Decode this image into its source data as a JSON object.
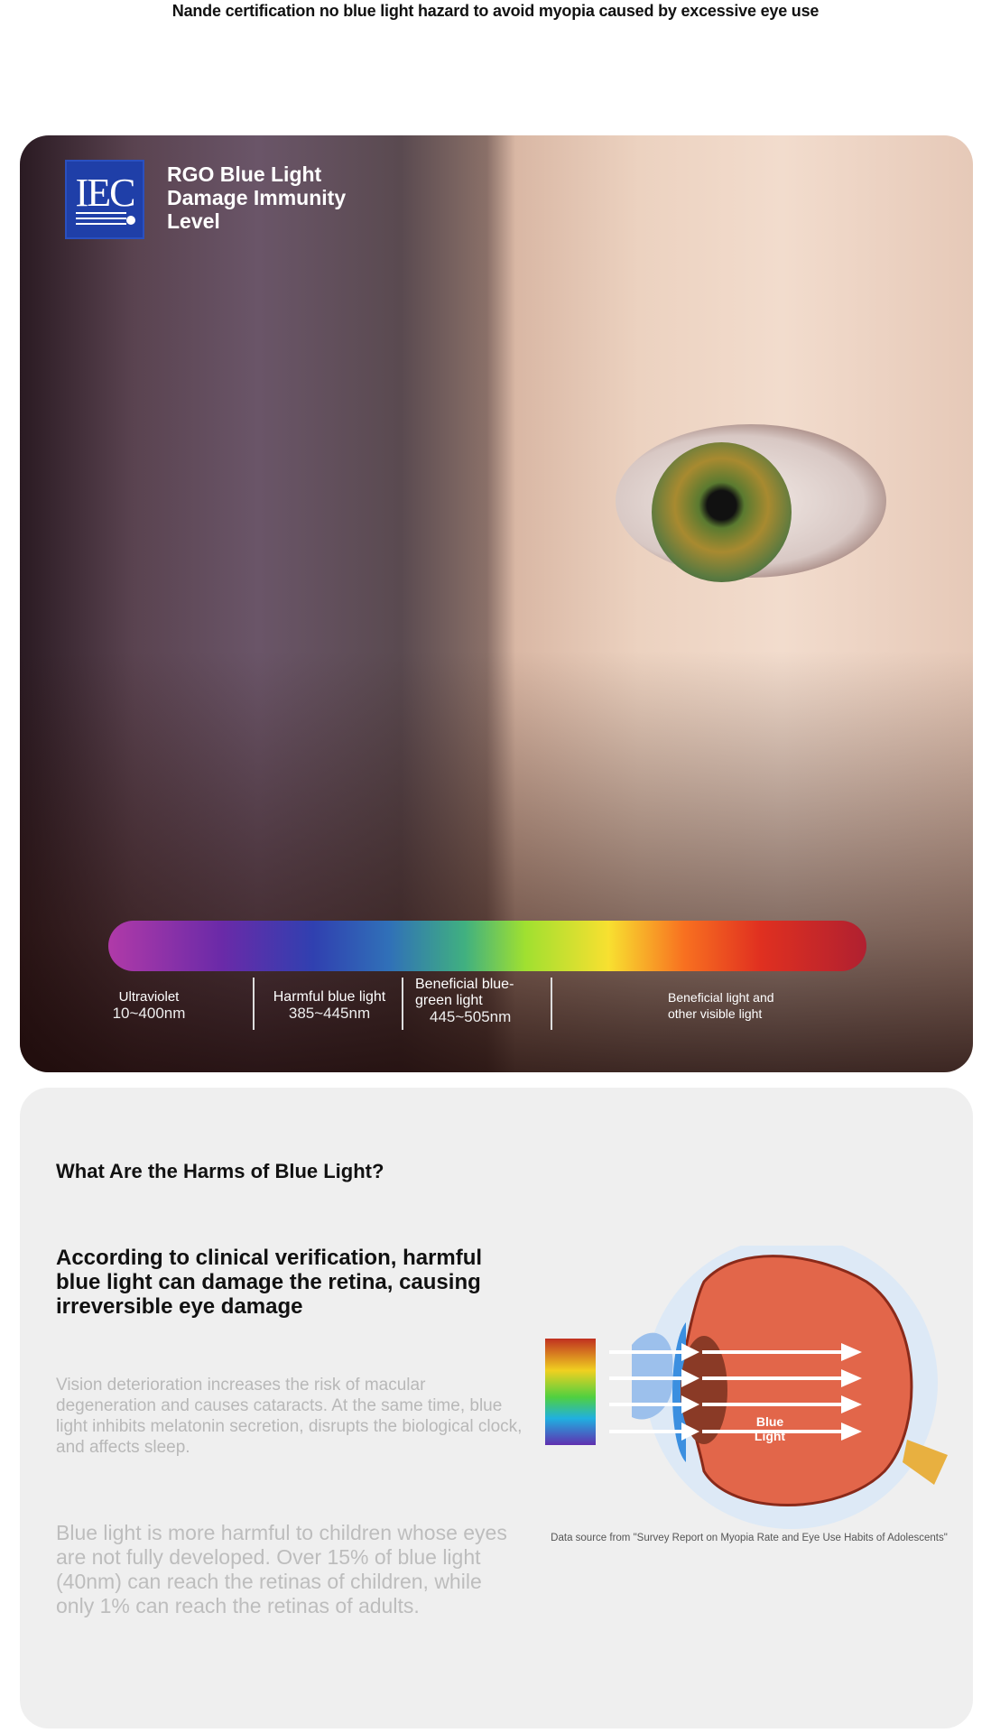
{
  "header": {
    "title": "Nande certification no blue light hazard to avoid myopia caused by excessive eye use"
  },
  "hero": {
    "logo_text": "IEC",
    "title_lines": [
      "RGO Blue Light",
      "Damage Immunity",
      "Level"
    ],
    "spectrum_bands": [
      {
        "name": "Ultraviolet",
        "range": "10~400nm"
      },
      {
        "name": "Harmful blue light",
        "range": "385~445nm"
      },
      {
        "name": "Beneficial blue-green light",
        "range": "445~505nm"
      },
      {
        "name": "Beneficial light and other visible light",
        "range": ""
      }
    ]
  },
  "harms": {
    "heading": "What Are the Harms of Blue Light?",
    "subheading": "According to clinical verification, harmful blue light can damage the retina, causing irreversible eye damage",
    "paragraph1": "Vision deterioration increases the risk of macular degeneration and causes cataracts. At the same time, blue light inhibits melatonin secretion, disrupts the biological clock, and affects sleep.",
    "paragraph2": "Blue light is more harmful to children whose eyes are not fully developed. Over 15% of blue light (40nm) can reach the retinas of children, while only 1% can reach the retinas of adults.",
    "diagram_label_lines": [
      "Blue",
      "Light"
    ],
    "source": "Data source from \"Survey Report on Myopia Rate and Eye Use Habits of Adolescents\""
  },
  "colors": {
    "iec_blue": "#1f3fa8",
    "eyeball": "#e2664a"
  }
}
